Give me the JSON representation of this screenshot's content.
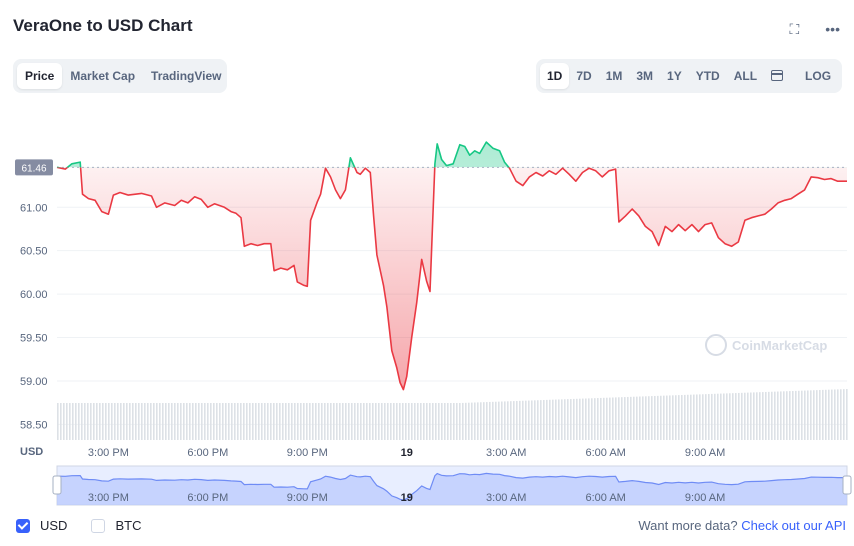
{
  "title": "VeraOne to USD Chart",
  "header_icons": {
    "fullscreen": "fullscreen-icon",
    "more": "more-icon"
  },
  "view_tabs": [
    {
      "label": "Price",
      "active": true
    },
    {
      "label": "Market Cap",
      "active": false
    },
    {
      "label": "TradingView",
      "active": false
    }
  ],
  "range_tabs": [
    {
      "label": "1D",
      "active": true
    },
    {
      "label": "7D",
      "active": false
    },
    {
      "label": "1M",
      "active": false
    },
    {
      "label": "3M",
      "active": false
    },
    {
      "label": "1Y",
      "active": false
    },
    {
      "label": "YTD",
      "active": false
    },
    {
      "label": "ALL",
      "active": false
    }
  ],
  "log_label": "LOG",
  "currency_options": [
    {
      "label": "USD",
      "checked": true
    },
    {
      "label": "BTC",
      "checked": false
    }
  ],
  "api_prompt": "Want more data?",
  "api_link": "Check out our API",
  "colors": {
    "up": "#16c784",
    "down": "#ea3943",
    "accent": "#3861fb",
    "grid": "#eff2f5"
  },
  "chart_data": {
    "type": "line",
    "current_price": 61.46,
    "current_price_label": "61.46",
    "y_unit_label": "USD",
    "y_ticks": [
      58.5,
      59.0,
      59.5,
      60.0,
      60.5,
      61.0
    ],
    "y_tick_labels": [
      "58.50",
      "59.00",
      "59.50",
      "60.00",
      "60.50",
      "61.00"
    ],
    "ylim": [
      58.32,
      62.12
    ],
    "x_ticks": [
      {
        "t": 1.0,
        "label": "3:00 PM"
      },
      {
        "t": 4.0,
        "label": "6:00 PM"
      },
      {
        "t": 7.0,
        "label": "9:00 PM"
      },
      {
        "t": 10.0,
        "label": "19"
      },
      {
        "t": 13.0,
        "label": "3:00 AM"
      },
      {
        "t": 16.0,
        "label": "6:00 AM"
      },
      {
        "t": 19.0,
        "label": "9:00 AM"
      }
    ],
    "xlim": [
      -0.55,
      23.28
    ],
    "watermark": "CoinMarketCap",
    "series": [
      {
        "values": [
          [
            -0.55,
            61.46
          ],
          [
            -0.3,
            61.44
          ],
          [
            -0.1,
            61.5
          ],
          [
            0.15,
            61.52
          ],
          [
            0.22,
            61.15
          ],
          [
            0.4,
            61.1
          ],
          [
            0.6,
            61.08
          ],
          [
            0.8,
            60.95
          ],
          [
            1.0,
            60.92
          ],
          [
            1.15,
            61.14
          ],
          [
            1.35,
            61.17
          ],
          [
            1.6,
            61.14
          ],
          [
            2.0,
            61.16
          ],
          [
            2.3,
            61.13
          ],
          [
            2.45,
            61.0
          ],
          [
            2.7,
            61.05
          ],
          [
            3.0,
            61.02
          ],
          [
            3.2,
            61.08
          ],
          [
            3.4,
            61.05
          ],
          [
            3.6,
            61.12
          ],
          [
            3.8,
            61.09
          ],
          [
            4.0,
            61.0
          ],
          [
            4.2,
            61.04
          ],
          [
            4.5,
            61.0
          ],
          [
            4.7,
            60.95
          ],
          [
            4.85,
            60.93
          ],
          [
            5.0,
            60.88
          ],
          [
            5.1,
            60.55
          ],
          [
            5.3,
            60.58
          ],
          [
            5.5,
            60.56
          ],
          [
            5.7,
            60.58
          ],
          [
            5.9,
            60.58
          ],
          [
            6.0,
            60.27
          ],
          [
            6.2,
            60.3
          ],
          [
            6.4,
            60.28
          ],
          [
            6.6,
            60.33
          ],
          [
            6.7,
            60.14
          ],
          [
            6.9,
            60.1
          ],
          [
            7.0,
            60.09
          ],
          [
            7.1,
            60.85
          ],
          [
            7.3,
            61.06
          ],
          [
            7.4,
            61.15
          ],
          [
            7.55,
            61.45
          ],
          [
            7.7,
            61.35
          ],
          [
            7.85,
            61.2
          ],
          [
            8.0,
            61.1
          ],
          [
            8.15,
            61.2
          ],
          [
            8.3,
            61.57
          ],
          [
            8.5,
            61.4
          ],
          [
            8.6,
            61.38
          ],
          [
            8.75,
            61.45
          ],
          [
            8.9,
            61.4
          ],
          [
            9.0,
            60.9
          ],
          [
            9.1,
            60.45
          ],
          [
            9.3,
            60.1
          ],
          [
            9.4,
            59.85
          ],
          [
            9.55,
            59.35
          ],
          [
            9.7,
            59.15
          ],
          [
            9.8,
            58.98
          ],
          [
            9.9,
            58.9
          ],
          [
            10.0,
            59.05
          ],
          [
            10.15,
            59.5
          ],
          [
            10.3,
            59.9
          ],
          [
            10.45,
            60.4
          ],
          [
            10.6,
            60.15
          ],
          [
            10.7,
            60.03
          ],
          [
            10.85,
            61.5
          ],
          [
            10.92,
            61.73
          ],
          [
            11.05,
            61.55
          ],
          [
            11.2,
            61.48
          ],
          [
            11.4,
            61.5
          ],
          [
            11.6,
            61.72
          ],
          [
            11.75,
            61.7
          ],
          [
            11.9,
            61.6
          ],
          [
            12.05,
            61.65
          ],
          [
            12.2,
            61.62
          ],
          [
            12.4,
            61.75
          ],
          [
            12.6,
            61.68
          ],
          [
            12.8,
            61.65
          ],
          [
            12.95,
            61.52
          ],
          [
            13.1,
            61.45
          ],
          [
            13.3,
            61.3
          ],
          [
            13.5,
            61.25
          ],
          [
            13.7,
            61.35
          ],
          [
            13.9,
            61.4
          ],
          [
            14.1,
            61.36
          ],
          [
            14.3,
            61.42
          ],
          [
            14.5,
            61.38
          ],
          [
            14.7,
            61.45
          ],
          [
            14.9,
            61.38
          ],
          [
            15.1,
            61.3
          ],
          [
            15.3,
            61.4
          ],
          [
            15.5,
            61.45
          ],
          [
            15.7,
            61.42
          ],
          [
            15.9,
            61.35
          ],
          [
            16.1,
            61.42
          ],
          [
            16.3,
            61.44
          ],
          [
            16.4,
            60.83
          ],
          [
            16.6,
            60.9
          ],
          [
            16.8,
            60.98
          ],
          [
            17.0,
            60.9
          ],
          [
            17.2,
            60.78
          ],
          [
            17.4,
            60.72
          ],
          [
            17.6,
            60.56
          ],
          [
            17.8,
            60.78
          ],
          [
            18.0,
            60.72
          ],
          [
            18.2,
            60.8
          ],
          [
            18.4,
            60.73
          ],
          [
            18.6,
            60.8
          ],
          [
            18.8,
            60.72
          ],
          [
            19.0,
            60.8
          ],
          [
            19.2,
            60.82
          ],
          [
            19.4,
            60.65
          ],
          [
            19.6,
            60.58
          ],
          [
            19.8,
            60.55
          ],
          [
            20.0,
            60.6
          ],
          [
            20.2,
            60.85
          ],
          [
            20.4,
            60.88
          ],
          [
            20.6,
            60.9
          ],
          [
            20.8,
            60.92
          ],
          [
            21.0,
            60.98
          ],
          [
            21.2,
            61.05
          ],
          [
            21.4,
            61.08
          ],
          [
            21.6,
            61.1
          ],
          [
            21.8,
            61.15
          ],
          [
            22.0,
            61.2
          ],
          [
            22.2,
            61.35
          ],
          [
            22.4,
            61.34
          ],
          [
            22.6,
            61.32
          ],
          [
            22.8,
            61.33
          ],
          [
            23.0,
            61.3
          ],
          [
            23.28,
            61.3
          ]
        ]
      }
    ]
  }
}
